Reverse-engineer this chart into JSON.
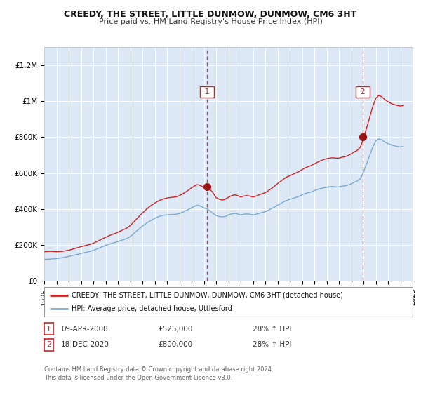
{
  "title": "CREEDY, THE STREET, LITTLE DUNMOW, DUNMOW, CM6 3HT",
  "subtitle": "Price paid vs. HM Land Registry's House Price Index (HPI)",
  "ylim": [
    0,
    1300000
  ],
  "yticks": [
    0,
    200000,
    400000,
    600000,
    800000,
    1000000,
    1200000
  ],
  "ytick_labels": [
    "£0",
    "£200K",
    "£400K",
    "£600K",
    "£800K",
    "£1M",
    "£1.2M"
  ],
  "background_color": "#ffffff",
  "plot_bg_color": "#dce8f5",
  "grid_color": "#ffffff",
  "red_line_color": "#cc2222",
  "blue_line_color": "#7aaad0",
  "sale1_year": 2008.25,
  "sale1_price": 525000,
  "sale2_year": 2020.95,
  "sale2_price": 800000,
  "sale1_date": "09-APR-2008",
  "sale2_date": "18-DEC-2020",
  "sale1_hpi": "28% ↑ HPI",
  "sale2_hpi": "28% ↑ HPI",
  "legend_red_label": "CREEDY, THE STREET, LITTLE DUNMOW, DUNMOW, CM6 3HT (detached house)",
  "legend_blue_label": "HPI: Average price, detached house, Uttlesford",
  "footer": "Contains HM Land Registry data © Crown copyright and database right 2024.\nThis data is licensed under the Open Government Licence v3.0.",
  "hpi_years": [
    1995.0,
    1995.25,
    1995.5,
    1995.75,
    1996.0,
    1996.25,
    1996.5,
    1996.75,
    1997.0,
    1997.25,
    1997.5,
    1997.75,
    1998.0,
    1998.25,
    1998.5,
    1998.75,
    1999.0,
    1999.25,
    1999.5,
    1999.75,
    2000.0,
    2000.25,
    2000.5,
    2000.75,
    2001.0,
    2001.25,
    2001.5,
    2001.75,
    2002.0,
    2002.25,
    2002.5,
    2002.75,
    2003.0,
    2003.25,
    2003.5,
    2003.75,
    2004.0,
    2004.25,
    2004.5,
    2004.75,
    2005.0,
    2005.25,
    2005.5,
    2005.75,
    2006.0,
    2006.25,
    2006.5,
    2006.75,
    2007.0,
    2007.25,
    2007.5,
    2007.75,
    2008.0,
    2008.25,
    2008.5,
    2008.75,
    2009.0,
    2009.25,
    2009.5,
    2009.75,
    2010.0,
    2010.25,
    2010.5,
    2010.75,
    2011.0,
    2011.25,
    2011.5,
    2011.75,
    2012.0,
    2012.25,
    2012.5,
    2012.75,
    2013.0,
    2013.25,
    2013.5,
    2013.75,
    2014.0,
    2014.25,
    2014.5,
    2014.75,
    2015.0,
    2015.25,
    2015.5,
    2015.75,
    2016.0,
    2016.25,
    2016.5,
    2016.75,
    2017.0,
    2017.25,
    2017.5,
    2017.75,
    2018.0,
    2018.25,
    2018.5,
    2018.75,
    2019.0,
    2019.25,
    2019.5,
    2019.75,
    2020.0,
    2020.25,
    2020.5,
    2020.75,
    2021.0,
    2021.25,
    2021.5,
    2021.75,
    2022.0,
    2022.25,
    2022.5,
    2022.75,
    2023.0,
    2023.25,
    2023.5,
    2023.75,
    2024.0,
    2024.25
  ],
  "hpi_values": [
    120000,
    121000,
    122000,
    123000,
    125000,
    127000,
    130000,
    133000,
    137000,
    141000,
    145000,
    149000,
    153000,
    157000,
    161000,
    165000,
    170000,
    177000,
    184000,
    191000,
    198000,
    204000,
    209000,
    214000,
    219000,
    225000,
    231000,
    237000,
    247000,
    261000,
    276000,
    291000,
    305000,
    318000,
    329000,
    339000,
    348000,
    356000,
    362000,
    366000,
    368000,
    369000,
    370000,
    371000,
    375000,
    382000,
    390000,
    398000,
    407000,
    416000,
    421000,
    416000,
    407000,
    401000,
    390000,
    375000,
    364000,
    359000,
    356000,
    359000,
    367000,
    373000,
    376000,
    373000,
    367000,
    371000,
    373000,
    371000,
    367000,
    371000,
    376000,
    381000,
    385000,
    393000,
    402000,
    411000,
    421000,
    430000,
    440000,
    448000,
    454000,
    459000,
    465000,
    471000,
    479000,
    486000,
    491000,
    495000,
    502000,
    509000,
    514000,
    518000,
    521000,
    524000,
    525000,
    523000,
    523000,
    527000,
    529000,
    534000,
    540000,
    549000,
    556000,
    570000,
    605000,
    651000,
    697000,
    744000,
    778000,
    790000,
    784000,
    772000,
    764000,
    757000,
    752000,
    748000,
    745000,
    748000
  ],
  "red_years": [
    1995.0,
    1995.25,
    1995.5,
    1995.75,
    1996.0,
    1996.25,
    1996.5,
    1996.75,
    1997.0,
    1997.25,
    1997.5,
    1997.75,
    1998.0,
    1998.25,
    1998.5,
    1998.75,
    1999.0,
    1999.25,
    1999.5,
    1999.75,
    2000.0,
    2000.25,
    2000.5,
    2000.75,
    2001.0,
    2001.25,
    2001.5,
    2001.75,
    2002.0,
    2002.25,
    2002.5,
    2002.75,
    2003.0,
    2003.25,
    2003.5,
    2003.75,
    2004.0,
    2004.25,
    2004.5,
    2004.75,
    2005.0,
    2005.25,
    2005.5,
    2005.75,
    2006.0,
    2006.25,
    2006.5,
    2006.75,
    2007.0,
    2007.25,
    2007.5,
    2007.75,
    2008.0,
    2008.25,
    2008.5,
    2008.75,
    2009.0,
    2009.25,
    2009.5,
    2009.75,
    2010.0,
    2010.25,
    2010.5,
    2010.75,
    2011.0,
    2011.25,
    2011.5,
    2011.75,
    2012.0,
    2012.25,
    2012.5,
    2012.75,
    2013.0,
    2013.25,
    2013.5,
    2013.75,
    2014.0,
    2014.25,
    2014.5,
    2014.75,
    2015.0,
    2015.25,
    2015.5,
    2015.75,
    2016.0,
    2016.25,
    2016.5,
    2016.75,
    2017.0,
    2017.25,
    2017.5,
    2017.75,
    2018.0,
    2018.25,
    2018.5,
    2018.75,
    2019.0,
    2019.25,
    2019.5,
    2019.75,
    2020.0,
    2020.25,
    2020.5,
    2020.75,
    2021.0,
    2021.25,
    2021.5,
    2021.75,
    2022.0,
    2022.25,
    2022.5,
    2022.75,
    2023.0,
    2023.25,
    2023.5,
    2023.75,
    2024.0,
    2024.25
  ],
  "red_values": [
    163000,
    164000,
    165000,
    164000,
    163000,
    164000,
    165000,
    168000,
    171000,
    176000,
    181000,
    186000,
    191000,
    195000,
    200000,
    204000,
    210000,
    218000,
    226000,
    235000,
    243000,
    251000,
    258000,
    264000,
    271000,
    279000,
    287000,
    295000,
    308000,
    325000,
    343000,
    361000,
    378000,
    394000,
    409000,
    422000,
    433000,
    443000,
    451000,
    457000,
    461000,
    464000,
    466000,
    468000,
    474000,
    483000,
    494000,
    505000,
    518000,
    529000,
    536000,
    530000,
    519000,
    525000,
    510000,
    490000,
    463000,
    455000,
    450000,
    455000,
    465000,
    474000,
    479000,
    475000,
    467000,
    472000,
    475000,
    472000,
    467000,
    472000,
    479000,
    485000,
    491000,
    502000,
    514000,
    527000,
    541000,
    554000,
    567000,
    578000,
    585000,
    593000,
    601000,
    609000,
    619000,
    629000,
    636000,
    642000,
    651000,
    660000,
    668000,
    675000,
    680000,
    683000,
    685000,
    683000,
    683000,
    688000,
    691000,
    698000,
    707000,
    718000,
    726000,
    745000,
    790000,
    850000,
    908000,
    969000,
    1015000,
    1032000,
    1024000,
    1008000,
    997000,
    987000,
    981000,
    976000,
    973000,
    976000
  ]
}
